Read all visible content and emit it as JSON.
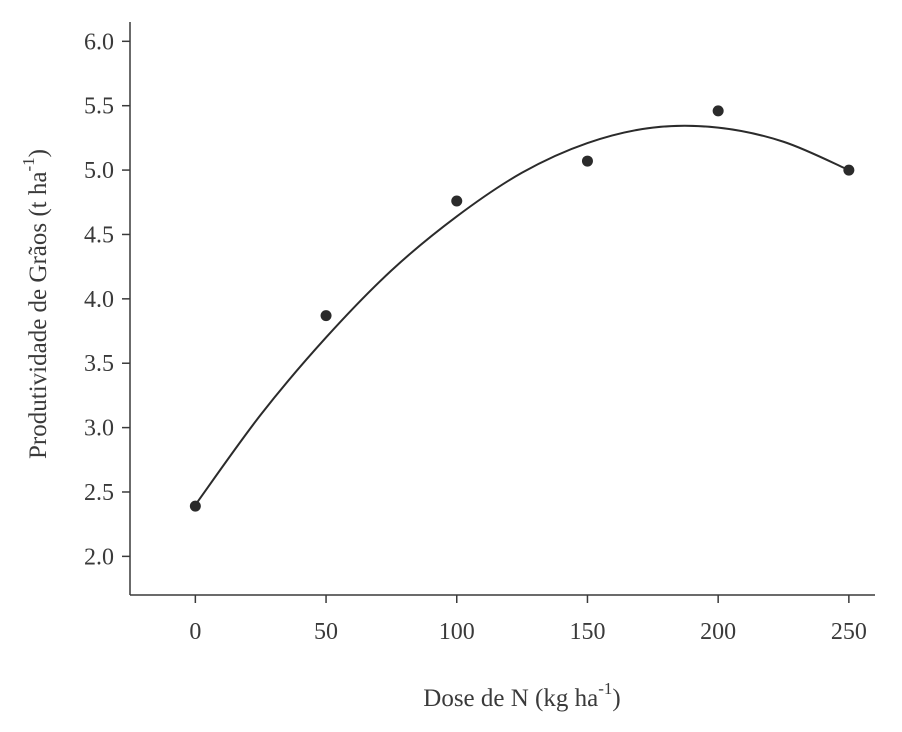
{
  "chart_data": {
    "type": "scatter",
    "xlabel": "Dose de N (kg ha",
    "xlabel_sup": "-1",
    "xlabel_close": ")",
    "ylabel": "Produtividade de Grãos (t ha",
    "ylabel_sup": "-1",
    "ylabel_close": ")",
    "xlim": [
      -25,
      260
    ],
    "ylim": [
      1.7,
      6.15
    ],
    "x_ticks": [
      0,
      50,
      100,
      150,
      200,
      250
    ],
    "x_tick_labels": [
      "0",
      "50",
      "100",
      "150",
      "200",
      "250"
    ],
    "y_ticks": [
      2.0,
      2.5,
      3.0,
      3.5,
      4.0,
      4.5,
      5.0,
      5.5,
      6.0
    ],
    "y_tick_labels": [
      "2.0",
      "2.5",
      "3.0",
      "3.5",
      "4.0",
      "4.5",
      "5.0",
      "5.5",
      "6.0"
    ],
    "grid": false,
    "series": [
      {
        "type": "scatter",
        "x": [
          0,
          50,
          100,
          150,
          200,
          250
        ],
        "y": [
          2.39,
          3.87,
          4.76,
          5.07,
          5.46,
          5.0
        ]
      },
      {
        "type": "line",
        "x": [
          0,
          25,
          50,
          75,
          100,
          125,
          150,
          175,
          200,
          225,
          250
        ],
        "y": [
          2.4,
          3.1,
          3.7,
          4.22,
          4.64,
          4.98,
          5.21,
          5.33,
          5.33,
          5.22,
          5.0
        ]
      }
    ]
  }
}
